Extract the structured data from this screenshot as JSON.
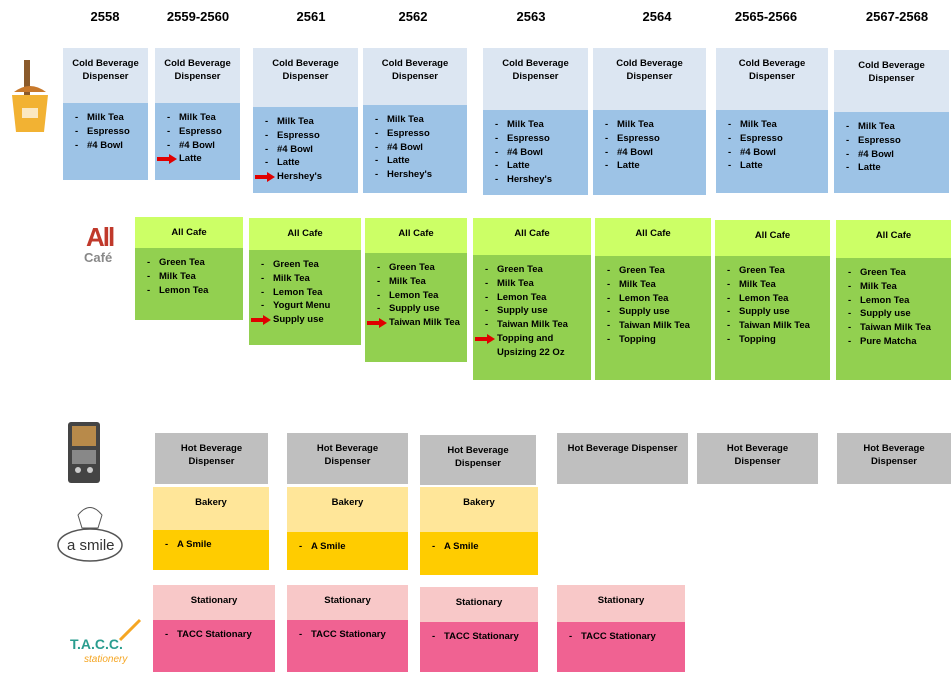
{
  "years": [
    "2558",
    "2559-2560",
    "2561",
    "2562",
    "2563",
    "2564",
    "2565-2566",
    "2567-2568"
  ],
  "logos": {
    "cafe_top": "All",
    "cafe_bottom": "Café",
    "smile": "a smile",
    "tacc": "T.A.C.C.",
    "tacc_sub": "stationery"
  },
  "cold_beverage": [
    {
      "title": "Cold Beverage Dispenser",
      "items": [
        "Milk Tea",
        "Espresso",
        "#4 Bowl"
      ]
    },
    {
      "title": "Cold Beverage Dispenser",
      "items": [
        "Milk Tea",
        "Espresso",
        "#4 Bowl",
        "Latte"
      ]
    },
    {
      "title": "Cold Beverage Dispenser",
      "items": [
        "Milk Tea",
        "Espresso",
        "#4 Bowl",
        "Latte",
        "Hershey's"
      ]
    },
    {
      "title": "Cold Beverage Dispenser",
      "items": [
        "Milk Tea",
        "Espresso",
        "#4 Bowl",
        "Latte",
        "Hershey's"
      ]
    },
    {
      "title": "Cold Beverage Dispenser",
      "items": [
        "Milk Tea",
        "Espresso",
        "#4 Bowl",
        "Latte",
        "Hershey's"
      ]
    },
    {
      "title": "Cold Beverage Dispenser",
      "items": [
        "Milk Tea",
        "Espresso",
        "#4 Bowl",
        "Latte"
      ]
    },
    {
      "title": "Cold Beverage Dispenser",
      "items": [
        "Milk Tea",
        "Espresso",
        "#4 Bowl",
        "Latte"
      ]
    },
    {
      "title": "Cold Beverage Dispenser",
      "items": [
        "Milk Tea",
        "Espresso",
        "#4 Bowl",
        "Latte"
      ]
    }
  ],
  "all_cafe": [
    {
      "title": "All Cafe",
      "items": [
        "Green Tea",
        "Milk Tea",
        "Lemon Tea"
      ]
    },
    {
      "title": "All Cafe",
      "items": [
        "Green Tea",
        "Milk Tea",
        "Lemon Tea",
        "Yogurt Menu",
        "Supply use"
      ]
    },
    {
      "title": "All Cafe",
      "items": [
        "Green Tea",
        "Milk Tea",
        "Lemon Tea",
        "Supply use",
        "Taiwan Milk Tea"
      ]
    },
    {
      "title": "All Cafe",
      "items": [
        "Green Tea",
        "Milk Tea",
        "Lemon Tea",
        "Supply use",
        "Taiwan Milk Tea",
        "Topping and Upsizing 22 Oz"
      ]
    },
    {
      "title": "All Cafe",
      "items": [
        "Green Tea",
        "Milk Tea",
        "Lemon Tea",
        "Supply use",
        "Taiwan Milk Tea",
        "Topping"
      ]
    },
    {
      "title": "All Cafe",
      "items": [
        "Green Tea",
        "Milk Tea",
        "Lemon Tea",
        "Supply use",
        "Taiwan Milk Tea",
        "Topping"
      ]
    },
    {
      "title": "All Cafe",
      "items": [
        "Green Tea",
        "Milk Tea",
        "Lemon Tea",
        "Supply use",
        "Taiwan Milk Tea",
        "Pure Matcha"
      ]
    }
  ],
  "hot_beverage": [
    {
      "title": "Hot Beverage Dispenser"
    },
    {
      "title": "Hot Beverage Dispenser"
    },
    {
      "title": "Hot Beverage Dispenser"
    },
    {
      "title": "Hot Beverage Dispenser"
    },
    {
      "title": "Hot Beverage Dispenser"
    },
    {
      "title": "Hot Beverage Dispenser"
    }
  ],
  "bakery": [
    {
      "title": "Bakery",
      "items": [
        "A Smile"
      ]
    },
    {
      "title": "Bakery",
      "items": [
        "A Smile"
      ]
    },
    {
      "title": "Bakery",
      "items": [
        "A Smile"
      ]
    }
  ],
  "stationary": [
    {
      "title": "Stationary",
      "items": [
        "TACC Stationary"
      ]
    },
    {
      "title": "Stationary",
      "items": [
        "TACC Stationary"
      ]
    },
    {
      "title": "Stationary",
      "items": [
        "TACC Stationary"
      ]
    },
    {
      "title": "Stationary",
      "items": [
        "TACC Stationary"
      ]
    }
  ]
}
